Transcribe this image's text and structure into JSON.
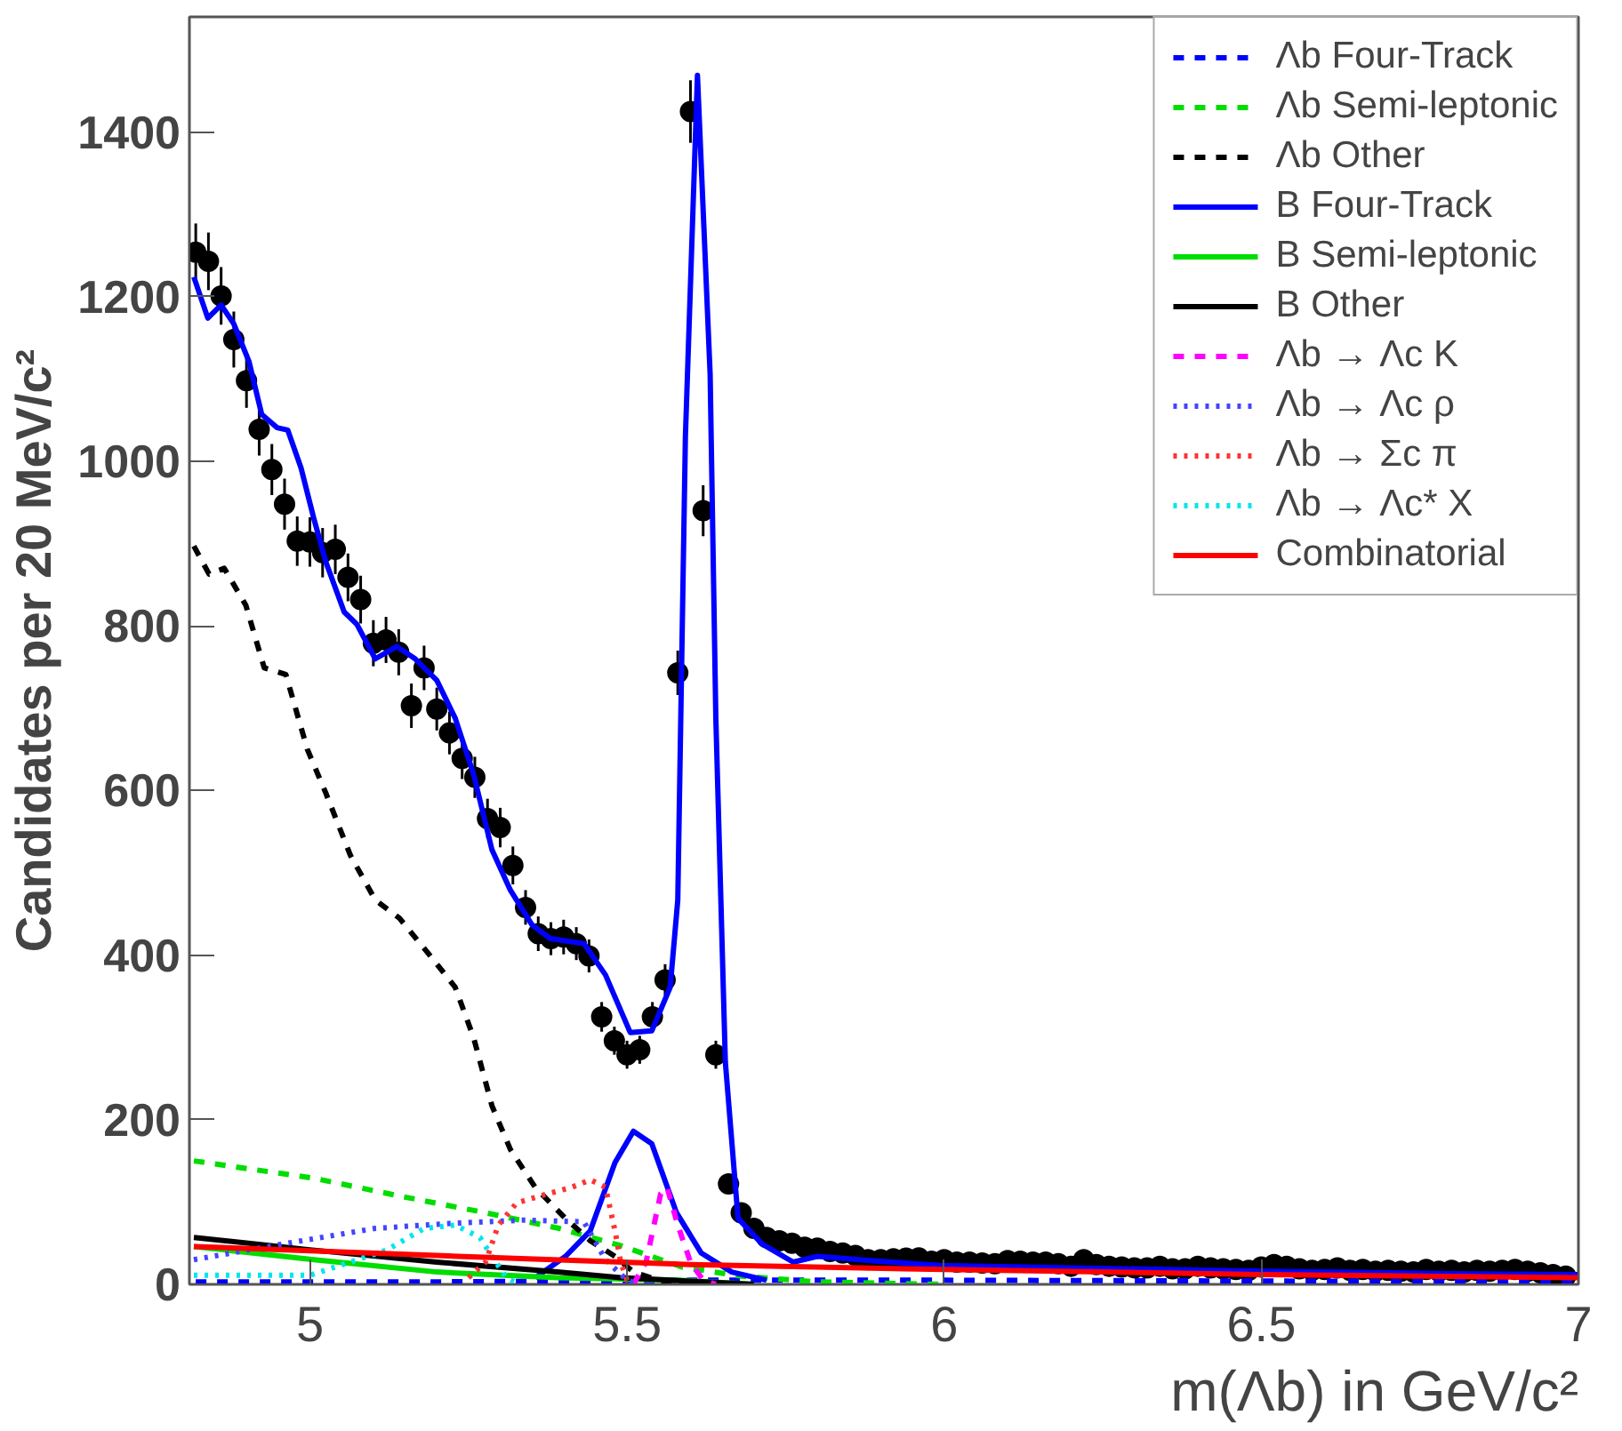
{
  "chart_data": {
    "type": "line",
    "xlabel": "m(Λb) in GeV/c²",
    "ylabel": "Candidates per 20 MeV/c²",
    "xlim": [
      4.81,
      7.0
    ],
    "xticks": [
      5,
      5.5,
      6,
      6.5,
      7
    ],
    "ylim": [
      0,
      1540
    ],
    "yticks": [
      0,
      200,
      400,
      600,
      800,
      1000,
      1200,
      1400
    ],
    "grid": false,
    "legend": "top right",
    "series": [
      {
        "type": "scatter",
        "marker": "circle",
        "color": "#000000",
        "x": [
          4.82,
          4.84,
          4.86,
          4.88,
          4.9,
          4.92,
          4.94,
          4.96,
          4.98,
          5.0,
          5.02,
          5.04,
          5.06,
          5.08,
          5.1,
          5.12,
          5.14,
          5.16,
          5.18,
          5.2,
          5.22,
          5.24,
          5.26,
          5.28,
          5.3,
          5.32,
          5.34,
          5.36,
          5.38,
          5.4,
          5.42,
          5.44,
          5.46,
          5.48,
          5.5,
          5.52,
          5.54,
          5.56,
          5.58,
          5.6,
          5.62,
          5.64,
          5.66,
          5.68,
          5.7,
          5.72,
          5.74,
          5.76,
          5.78,
          5.8,
          5.82,
          5.84,
          5.86,
          5.88,
          5.9,
          5.92,
          5.94,
          5.96,
          5.98,
          6.0,
          6.02,
          6.04,
          6.06,
          6.08,
          6.1,
          6.12,
          6.14,
          6.16,
          6.18,
          6.2,
          6.22,
          6.24,
          6.26,
          6.28,
          6.3,
          6.32,
          6.34,
          6.36,
          6.38,
          6.4,
          6.42,
          6.44,
          6.46,
          6.48,
          6.5,
          6.52,
          6.54,
          6.56,
          6.58,
          6.6,
          6.62,
          6.64,
          6.66,
          6.68,
          6.7,
          6.72,
          6.74,
          6.76,
          6.78,
          6.8,
          6.82,
          6.84,
          6.86,
          6.88,
          6.9,
          6.92,
          6.94,
          6.96,
          6.98
        ],
        "values": [
          1254,
          1243,
          1201,
          1148,
          1098,
          1039,
          990,
          948,
          903,
          902,
          889,
          893,
          859,
          832,
          779,
          783,
          768,
          703,
          749,
          699,
          670,
          639,
          616,
          566,
          555,
          509,
          458,
          426,
          420,
          422,
          414,
          399,
          325,
          296,
          279,
          285,
          325,
          370,
          743,
          1425,
          940,
          279,
          122,
          87,
          68,
          57,
          53,
          50,
          45,
          44,
          40,
          38,
          35,
          30,
          30,
          31,
          32,
          32,
          28,
          30,
          27,
          27,
          26,
          25,
          29,
          28,
          27,
          27,
          25,
          22,
          30,
          24,
          22,
          21,
          20,
          20,
          22,
          19,
          19,
          22,
          20,
          19,
          18,
          17,
          21,
          24,
          22,
          19,
          17,
          18,
          20,
          17,
          18,
          16,
          17,
          16,
          15,
          18,
          16,
          17,
          15,
          17,
          16,
          17,
          18,
          16,
          14,
          12,
          10
        ],
        "errors": [
          35,
          35,
          35,
          34,
          33,
          32,
          31,
          31,
          30,
          30,
          30,
          30,
          29,
          29,
          28,
          28,
          28,
          27,
          27,
          26,
          26,
          25,
          25,
          24,
          24,
          23,
          21,
          21,
          20,
          21,
          20,
          20,
          18,
          17,
          17,
          17,
          18,
          19,
          27,
          38,
          31,
          17,
          11,
          9,
          8,
          8,
          7,
          7,
          7,
          7,
          6,
          6,
          6,
          5,
          5,
          6,
          6,
          6,
          5,
          5,
          5,
          5,
          5,
          5,
          5,
          5,
          5,
          5,
          5,
          4,
          5,
          4,
          4,
          4,
          4,
          4,
          4,
          4,
          4,
          4,
          4,
          4,
          4,
          4,
          4,
          4,
          4,
          4,
          4,
          4,
          4,
          4,
          4,
          4,
          4,
          4,
          4,
          4,
          4,
          4,
          4,
          4,
          4,
          4,
          4,
          4,
          4,
          3,
          3
        ]
      },
      {
        "color": "#0000ff",
        "line_style": "solid",
        "x": [
          4.817,
          4.839,
          4.86,
          4.88,
          4.904,
          4.924,
          4.948,
          4.965,
          4.986,
          5.006,
          5.025,
          5.054,
          5.074,
          5.103,
          5.137,
          5.166,
          5.2,
          5.229,
          5.258,
          5.287,
          5.316,
          5.35,
          5.379,
          5.432,
          5.466,
          5.505,
          5.539,
          5.568,
          5.58,
          5.592,
          5.611,
          5.631,
          5.64,
          5.655,
          5.675,
          5.713,
          5.762,
          5.8,
          5.897,
          5.994,
          6.2,
          6.5,
          6.8,
          7.0
        ],
        "values": [
          1224,
          1174,
          1190,
          1167,
          1121,
          1057,
          1041,
          1038,
          992,
          931,
          878,
          817,
          802,
          760,
          775,
          760,
          734,
          688,
          620,
          528,
          479,
          437,
          420,
          414,
          376,
          306,
          308,
          361,
          467,
          1030,
          1469,
          1106,
          688,
          270,
          80,
          49,
          27,
          34,
          28,
          23,
          20,
          16,
          13,
          12
        ]
      },
      {
        "name": "Λb Four-Track",
        "color": "#0000ff",
        "line_style": "dashed",
        "x": [
          4.82,
          5.2,
          5.6,
          6.0,
          6.5,
          7.0
        ],
        "values": [
          3,
          3,
          5,
          5,
          4,
          3
        ]
      },
      {
        "name": "Λb Semi-leptonic",
        "color": "#00dd00",
        "line_style": "dashed",
        "x": [
          4.817,
          5.006,
          5.15,
          5.277,
          5.393,
          5.49,
          5.587,
          5.68,
          5.8,
          6.0
        ],
        "values": [
          150,
          129,
          106,
          87,
          68,
          47,
          21,
          10,
          3,
          0
        ]
      },
      {
        "name": "Λb Other",
        "color": "#000000",
        "line_style": "dashed",
        "x": [
          4.817,
          4.841,
          4.865,
          4.899,
          4.928,
          4.962,
          4.996,
          5.025,
          5.064,
          5.103,
          5.141,
          5.19,
          5.229,
          5.258,
          5.287,
          5.316,
          5.355,
          5.403,
          5.442,
          5.481,
          5.51,
          5.55,
          5.6
        ],
        "values": [
          897,
          863,
          870,
          825,
          749,
          741,
          650,
          597,
          521,
          467,
          445,
          399,
          361,
          300,
          217,
          164,
          118,
          80,
          53,
          34,
          15,
          5,
          0
        ]
      },
      {
        "name": "B Four-Track",
        "color": "#0000ff",
        "line_style": "solid",
        "x": [
          5.355,
          5.403,
          5.442,
          5.481,
          5.51,
          5.539,
          5.578,
          5.617,
          5.665,
          5.72
        ],
        "values": [
          8,
          34,
          65,
          148,
          186,
          171,
          87,
          38,
          15,
          5
        ]
      },
      {
        "name": "B Semi-leptonic",
        "color": "#00dd00",
        "line_style": "solid",
        "x": [
          4.817,
          5.006,
          5.2,
          5.39,
          5.58,
          5.7
        ],
        "values": [
          46,
          30,
          15,
          8,
          5,
          0
        ]
      },
      {
        "name": "B Other",
        "color": "#000000",
        "line_style": "solid",
        "x": [
          4.817,
          5.0,
          5.2,
          5.39,
          5.49,
          5.7
        ],
        "values": [
          57,
          42,
          27,
          15,
          8,
          0
        ]
      },
      {
        "name": "Λb → Λc K",
        "color": "#ff00ff",
        "line_style": "dashed",
        "x": [
          5.51,
          5.53,
          5.553,
          5.563,
          5.58,
          5.6,
          5.62,
          5.64
        ],
        "values": [
          0,
          27,
          110,
          118,
          72,
          27,
          5,
          0
        ]
      },
      {
        "name": "Λb → Λc ρ",
        "color": "#4444ff",
        "line_style": "dotted",
        "x": [
          4.817,
          4.957,
          5.103,
          5.22,
          5.337,
          5.432,
          5.466,
          5.5,
          5.52
        ],
        "values": [
          30,
          49,
          68,
          74,
          78,
          76,
          30,
          5,
          0
        ]
      },
      {
        "name": "Λb → Σc π",
        "color": "#ff3333",
        "line_style": "dotted",
        "x": [
          5.25,
          5.277,
          5.297,
          5.326,
          5.375,
          5.413,
          5.442,
          5.466,
          5.481,
          5.49,
          5.5,
          5.51
        ],
        "values": [
          8,
          27,
          72,
          99,
          110,
          118,
          127,
          118,
          65,
          27,
          5,
          0
        ]
      },
      {
        "name": "Λb → Λc* X",
        "color": "#00e5ee",
        "line_style": "dotted",
        "x": [
          4.817,
          5.0,
          5.122,
          5.18,
          5.229,
          5.268,
          5.287,
          5.31,
          5.33
        ],
        "values": [
          11,
          11,
          42,
          68,
          72,
          57,
          34,
          8,
          0
        ]
      },
      {
        "name": "Combinatorial",
        "color": "#ff0000",
        "line_style": "solid",
        "x": [
          4.817,
          5.2,
          5.6,
          6.0,
          6.5,
          7.0
        ],
        "values": [
          46,
          35,
          24,
          18,
          12,
          8
        ]
      }
    ]
  }
}
